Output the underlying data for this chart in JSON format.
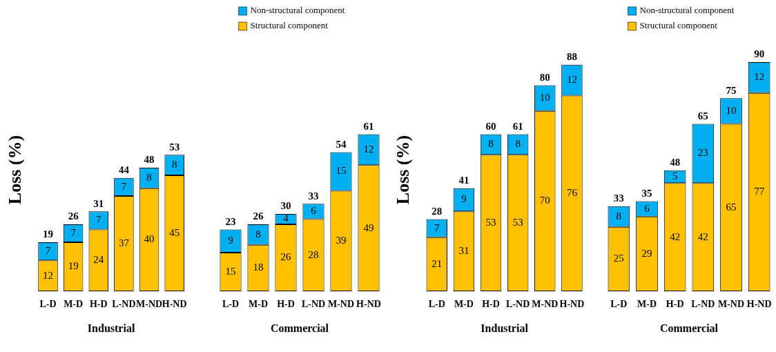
{
  "chart_data": [
    {
      "type": "bar",
      "stacked": true,
      "ylabel": "Loss (%)",
      "xlabel": "Industrial",
      "categories": [
        "L-D",
        "M-D",
        "H-D",
        "L-ND",
        "M-ND",
        "H-ND"
      ],
      "data_labels": true,
      "totals": [
        "19",
        "26",
        "31",
        "44",
        "48",
        "53"
      ],
      "series": [
        {
          "color": "#ffc000",
          "values": [
            12,
            19,
            24,
            37,
            40,
            45
          ]
        },
        {
          "color": "#00b0f0",
          "values": [
            7,
            7,
            7,
            7,
            8,
            8
          ]
        }
      ]
    },
    {
      "type": "bar",
      "stacked": true,
      "xlabel": "Commercial",
      "legend": "top",
      "categories": [
        "L-D",
        "M-D",
        "H-D",
        "L-ND",
        "M-ND",
        "H-ND"
      ],
      "data_labels": true,
      "totals": [
        "23",
        "26",
        "30",
        "33",
        "54",
        "61"
      ],
      "series": [
        {
          "name": "Structural component",
          "color": "#ffc000",
          "values": [
            15,
            18,
            26,
            28,
            39,
            49
          ]
        },
        {
          "name": "Non-structural component",
          "color": "#00b0f0",
          "values": [
            9,
            8,
            4,
            6,
            15,
            12
          ]
        }
      ]
    },
    {
      "type": "bar",
      "stacked": true,
      "ylabel": "Loss (%)",
      "xlabel": "Industrial",
      "categories": [
        "L-D",
        "M-D",
        "H-D",
        "L-ND",
        "M-ND",
        "H-ND"
      ],
      "data_labels": true,
      "totals": [
        "28",
        "41",
        "60",
        "61",
        "80",
        "88"
      ],
      "series": [
        {
          "color": "#ffc000",
          "values": [
            21,
            31,
            53,
            53,
            70,
            76
          ]
        },
        {
          "color": "#00b0f0",
          "values": [
            7,
            9,
            8,
            8,
            10,
            12
          ]
        }
      ]
    },
    {
      "type": "bar",
      "stacked": true,
      "xlabel": "Commercial",
      "legend": "top",
      "categories": [
        "L-D",
        "M-D",
        "H-D",
        "L-ND",
        "M-ND",
        "H-ND"
      ],
      "data_labels": true,
      "totals": [
        "33",
        "35",
        "48",
        "65",
        "75",
        "90"
      ],
      "series": [
        {
          "name": "Structural component",
          "color": "#ffc000",
          "values": [
            25,
            29,
            42,
            42,
            65,
            77
          ]
        },
        {
          "name": "Non-structural component",
          "color": "#00b0f0",
          "values": [
            8,
            6,
            5,
            23,
            10,
            12
          ]
        }
      ]
    }
  ]
}
